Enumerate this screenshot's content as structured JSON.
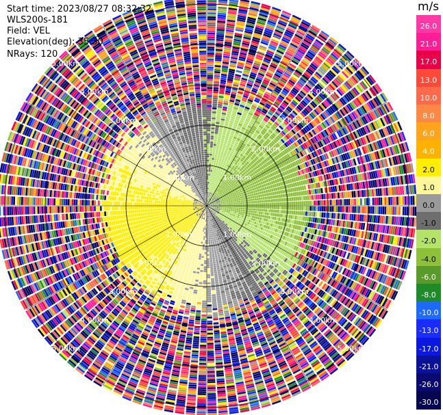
{
  "header": {
    "start_time": "Start time: 2023/08/27 08:32:32",
    "instrument": "WLS200s-181",
    "field": "Field: VEL",
    "elevation": "Elevation(deg): 35.30",
    "nrays": "NRays: 120"
  },
  "colorbar": {
    "title": "m/s",
    "ticks": [
      "26.0",
      "21.0",
      "17.0",
      "13.0",
      "10.0",
      "8.0",
      "6.0",
      "4.0",
      "2.0",
      "1.0",
      "0.0",
      "-1.0",
      "-2.0",
      "-4.0",
      "-6.0",
      "-8.0",
      "-10.0",
      "-13.0",
      "-17.0",
      "-21.0",
      "-26.0",
      "-30.0"
    ],
    "colors": [
      "#ff3aa6",
      "#ff1e96",
      "#e8004a",
      "#ff4a3a",
      "#ff6a4a",
      "#ff8844",
      "#ffa41c",
      "#ffb100",
      "#ffee00",
      "#fff89a",
      "#9a9a9a",
      "#6e6e6e",
      "#b5e36a",
      "#8fc03a",
      "#5a9a2a",
      "#1f8a2a",
      "#1e6aff",
      "#1a2cff",
      "#0a18e0",
      "#0b1299",
      "#0a0a70",
      "#070750"
    ]
  },
  "chart_data": {
    "type": "heatmap",
    "projection": "polar PPI",
    "field": "VEL",
    "units": "m/s",
    "n_rays": 120,
    "elevation_deg": 35.3,
    "range_rings_km": [
      1.0,
      2.0,
      3.0,
      4.0,
      5.0
    ],
    "ring_labels": [
      "1.00km",
      "2.00km",
      "3.00km",
      "4.00km",
      "5.00km"
    ],
    "valid_range_km": 2.6,
    "max_range_km": 5.15,
    "wind": {
      "speed_ms": 2.5,
      "toward_deg_from_north": 250
    },
    "color_scale_min": -30.0,
    "color_scale_max": 26.0
  }
}
